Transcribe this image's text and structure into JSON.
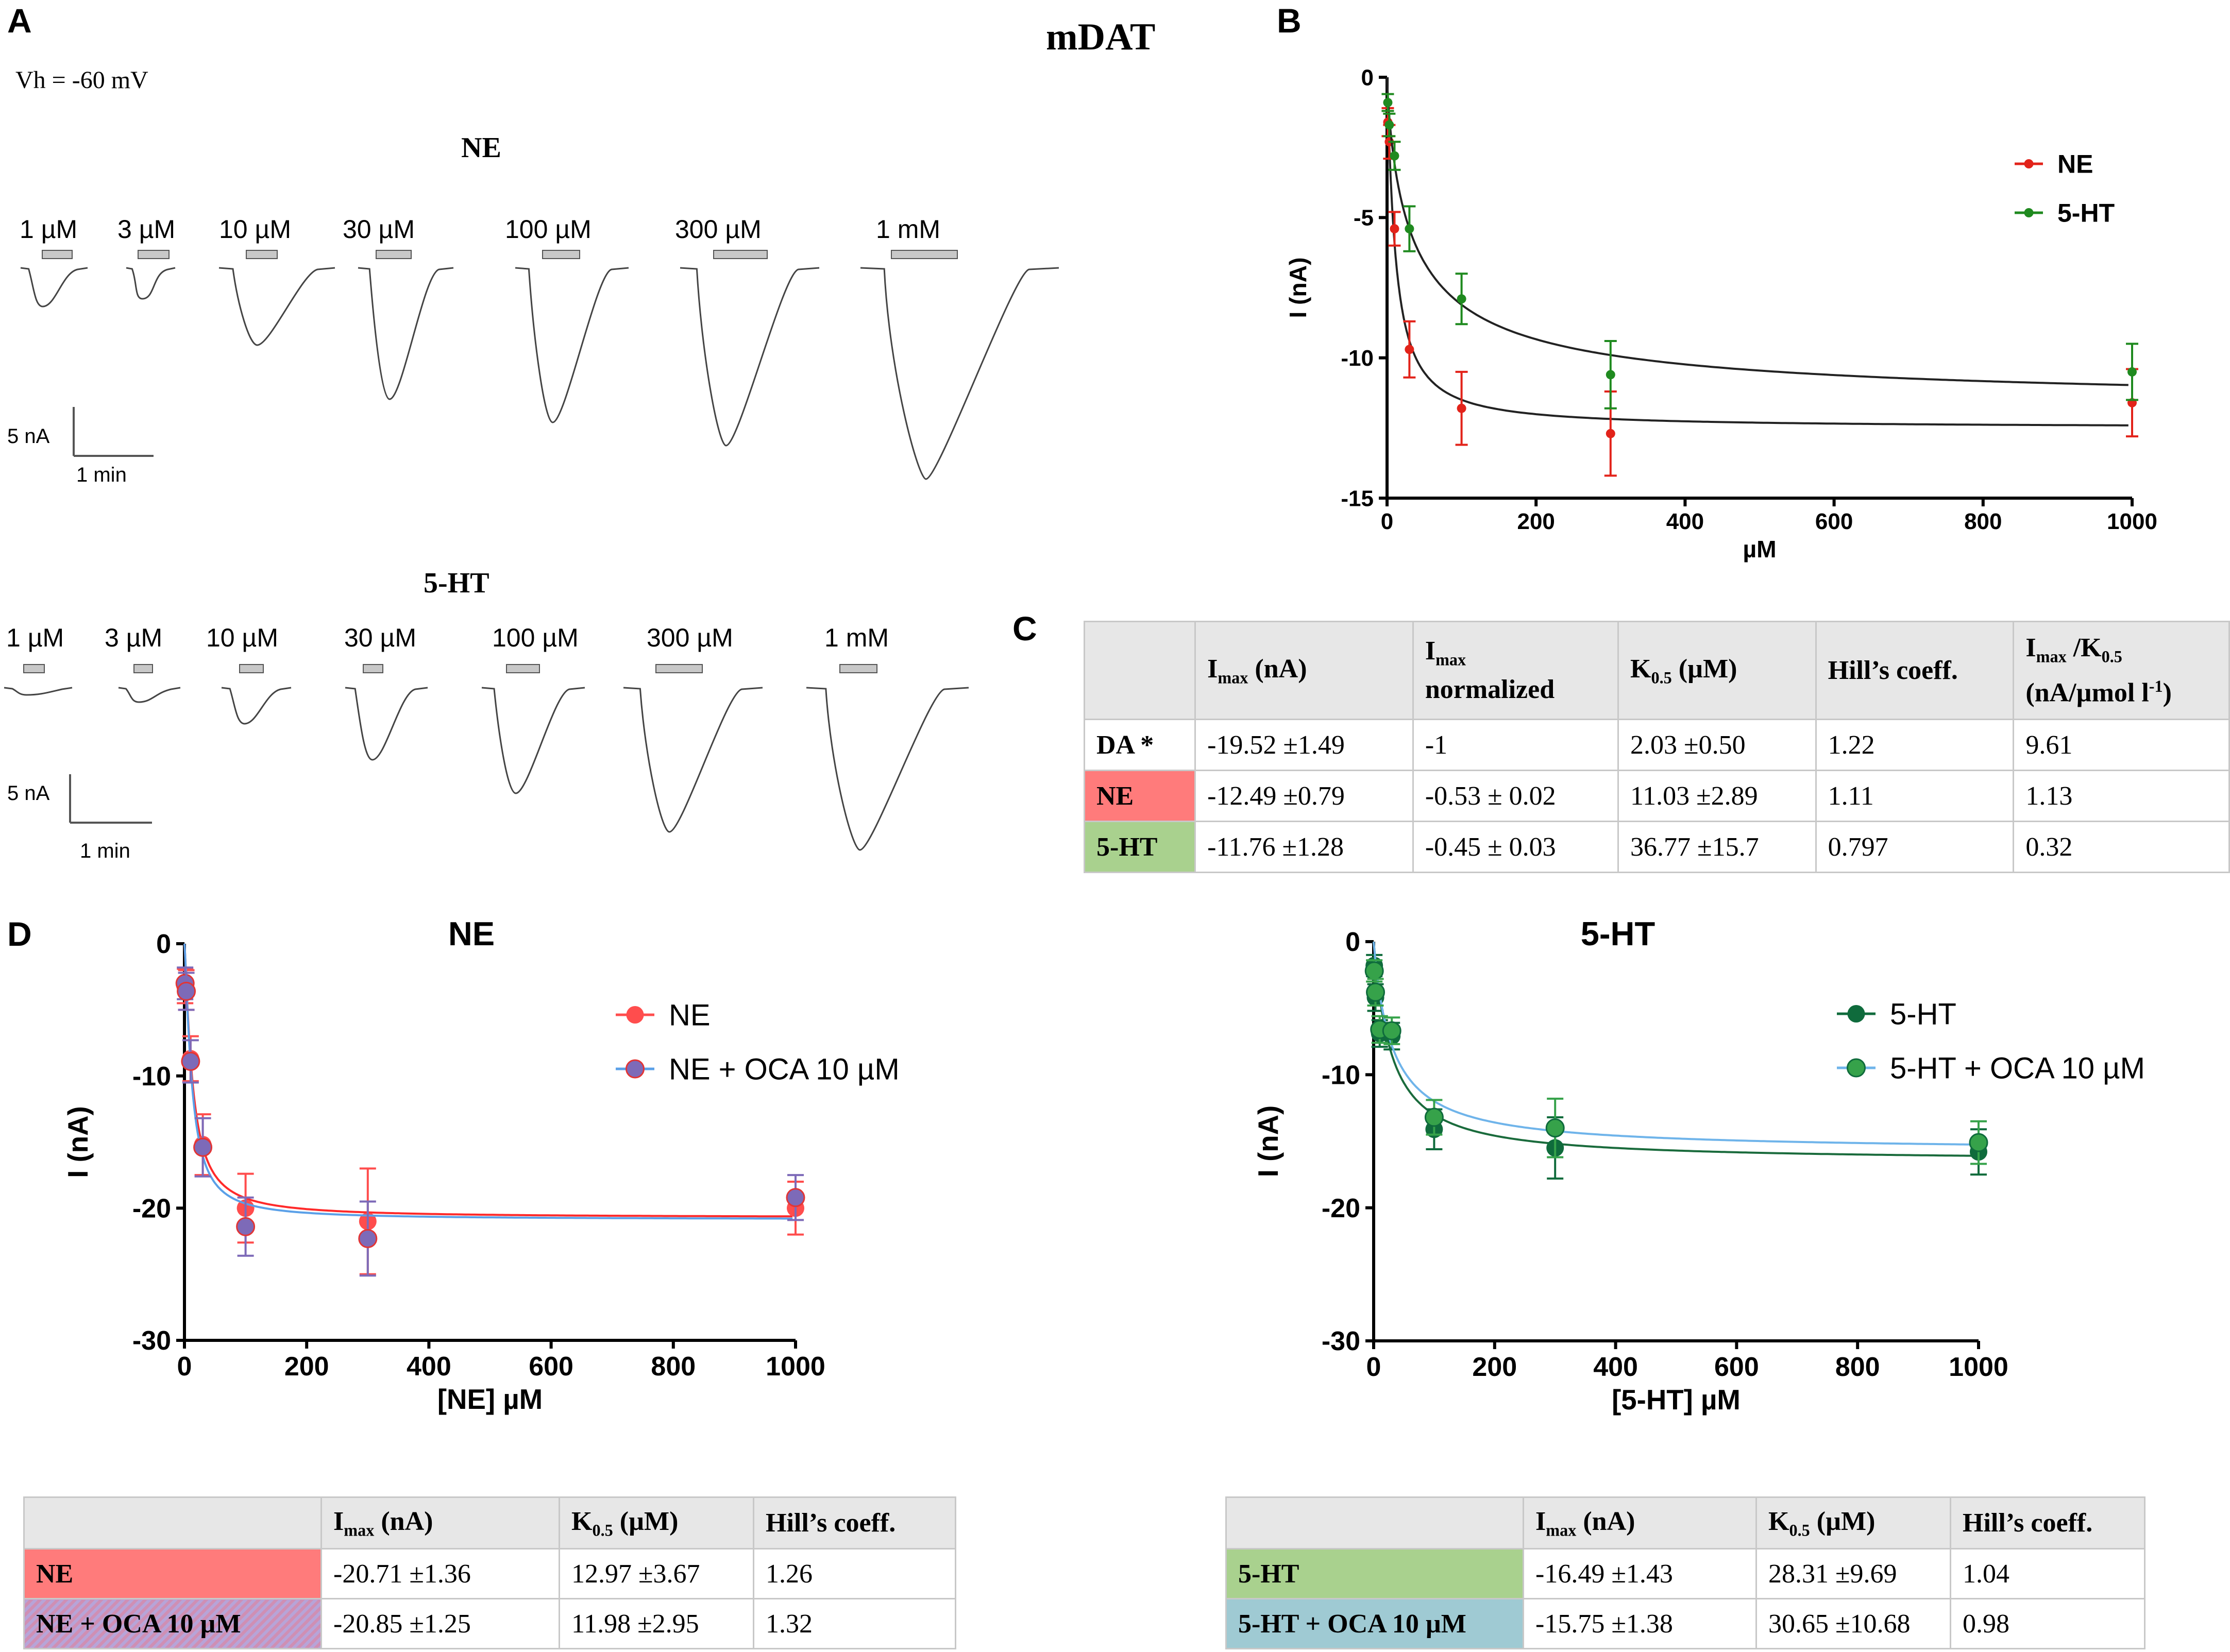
{
  "panel_letters": {
    "a": "A",
    "b": "B",
    "c": "C",
    "d": "D"
  },
  "panel_a": {
    "title": "mDAT",
    "vh": "Vh = -60 mV",
    "ne_title": "NE",
    "ht_title": "5-HT",
    "ne_concentrations": [
      "1 µM",
      "3 µM",
      "10 µM",
      "30 µM",
      "100 µM",
      "300 µM",
      "1 mM"
    ],
    "ht_concentrations": [
      "1 µM",
      "3 µM",
      "10 µM",
      "30 µM",
      "100 µM",
      "300 µM",
      "1 mM"
    ],
    "scale_current": "5 nA",
    "scale_time": "1 min"
  },
  "chart_data": [
    {
      "id": "B",
      "type": "scatter",
      "title": "",
      "xlabel": "µM",
      "ylabel": "I (nA)",
      "xlim": [
        0,
        1000
      ],
      "ylim": [
        -15,
        0
      ],
      "xticks": [
        "0",
        "200",
        "400",
        "600",
        "800",
        "1000"
      ],
      "yticks": [
        "0",
        "-5",
        "-10",
        "-15"
      ],
      "legend_position": "top-right",
      "series": [
        {
          "name": "NE",
          "color": "#e2231a",
          "x": [
            1,
            3,
            10,
            30,
            100,
            300,
            1000
          ],
          "y": [
            -1.6,
            -2.3,
            -5.4,
            -9.7,
            -11.8,
            -12.7,
            -11.6
          ],
          "err": [
            0.5,
            0.6,
            0.6,
            1.0,
            1.3,
            1.5,
            1.2
          ],
          "fit": {
            "imax": -12.49,
            "k": 11.03,
            "n": 1.11
          }
        },
        {
          "name": "5-HT",
          "color": "#1f8a1f",
          "x": [
            1,
            3,
            10,
            30,
            100,
            300,
            1000
          ],
          "y": [
            -0.9,
            -1.7,
            -2.8,
            -5.4,
            -7.9,
            -10.6,
            -10.5
          ],
          "err": [
            0.3,
            0.4,
            0.5,
            0.8,
            0.9,
            1.2,
            1.0
          ],
          "fit": {
            "imax": -11.76,
            "k": 36.77,
            "n": 0.797
          }
        }
      ]
    },
    {
      "id": "D-NE",
      "type": "scatter",
      "title": "NE",
      "xlabel": "[NE] µM",
      "ylabel": "I (nA)",
      "xlim": [
        0,
        1000
      ],
      "ylim": [
        -30,
        0
      ],
      "xticks": [
        "0",
        "200",
        "400",
        "600",
        "800",
        "1000"
      ],
      "yticks": [
        "0",
        "-10",
        "-20",
        "-30"
      ],
      "legend_position": "top-right",
      "series": [
        {
          "name": "NE",
          "color": "#ff4d4d",
          "x": [
            1,
            3,
            10,
            30,
            100,
            300,
            1000
          ],
          "y": [
            -3.2,
            -3.5,
            -8.7,
            -15.2,
            -20.0,
            -21.0,
            -20.0
          ],
          "err": [
            1.3,
            1.5,
            1.7,
            2.3,
            2.6,
            4.0,
            2.0
          ],
          "fit": {
            "imax": -20.71,
            "k": 12.97,
            "n": 1.26
          }
        },
        {
          "name": "NE + OCA 10 µM",
          "color": "#7d6ab8",
          "x": [
            1,
            3,
            10,
            30,
            100,
            300,
            1000
          ],
          "y": [
            -3.0,
            -3.6,
            -8.9,
            -15.4,
            -21.4,
            -22.3,
            -19.2
          ],
          "err": [
            1.2,
            1.4,
            1.6,
            2.2,
            2.2,
            2.8,
            1.7
          ],
          "fit": {
            "imax": -20.85,
            "k": 11.98,
            "n": 1.32
          }
        }
      ]
    },
    {
      "id": "D-5HT",
      "type": "scatter",
      "title": "5-HT",
      "xlabel": "[5-HT] µM",
      "ylabel": "I (nA)",
      "xlim": [
        0,
        1000
      ],
      "ylim": [
        -30,
        0
      ],
      "xticks": [
        "0",
        "200",
        "400",
        "600",
        "800",
        "1000"
      ],
      "yticks": [
        "0",
        "-10",
        "-20",
        "-30"
      ],
      "legend_position": "top-right",
      "series": [
        {
          "name": "5-HT",
          "color": "#0f6b3c",
          "x": [
            1,
            3,
            10,
            30,
            100,
            300,
            1000
          ],
          "y": [
            -1.8,
            -4.2,
            -6.9,
            -7.1,
            -14.1,
            -15.5,
            -15.8
          ],
          "err": [
            0.8,
            1.0,
            1.0,
            1.0,
            1.5,
            2.3,
            1.7
          ],
          "fit": {
            "imax": -16.49,
            "k": 28.31,
            "n": 1.04
          }
        },
        {
          "name": "5-HT + OCA 10 µM",
          "color": "#36a24a",
          "x": [
            1,
            3,
            10,
            30,
            100,
            300,
            1000
          ],
          "y": [
            -2.2,
            -3.8,
            -6.6,
            -6.7,
            -13.2,
            -14.0,
            -15.1
          ],
          "err": [
            0.8,
            1.0,
            1.0,
            1.0,
            1.3,
            2.2,
            1.6
          ],
          "fit": {
            "imax": -15.75,
            "k": 30.65,
            "n": 0.98
          }
        }
      ]
    }
  ],
  "table_c": {
    "headers": [
      "",
      "Imax (nA)",
      "Imax normalized",
      "K0.5 (µM)",
      "Hill’s coeff.",
      "Imax /K0.5 (nA/µmol l-1)"
    ],
    "rows": [
      {
        "label": "DA *",
        "imax": "-19.52 ±1.49",
        "norm": "-1",
        "k": "2.03 ±0.50",
        "hill": "1.22",
        "ratio": "9.61"
      },
      {
        "label": "NE",
        "imax": "-12.49 ±0.79",
        "norm": "-0.53 ± 0.02",
        "k": "11.03 ±2.89",
        "hill": "1.11",
        "ratio": "1.13"
      },
      {
        "label": "5-HT",
        "imax": "-11.76 ±1.28",
        "norm": "-0.45 ± 0.03",
        "k": "36.77 ±15.7",
        "hill": "0.797",
        "ratio": "0.32"
      }
    ]
  },
  "table_d_ne": {
    "headers": [
      "",
      "Imax (nA)",
      "K0.5 (µM)",
      "Hill’s coeff."
    ],
    "rows": [
      {
        "label": "NE",
        "imax": "-20.71 ±1.36",
        "k": "12.97 ±3.67",
        "hill": "1.26"
      },
      {
        "label": "NE + OCA 10 µM",
        "imax": "-20.85 ±1.25",
        "k": "11.98 ±2.95",
        "hill": "1.32"
      }
    ]
  },
  "table_d_5ht": {
    "headers": [
      "",
      "Imax (nA)",
      "K0.5 (µM)",
      "Hill’s coeff."
    ],
    "rows": [
      {
        "label": "5-HT",
        "imax": "-16.49 ±1.43",
        "k": "28.31 ±9.69",
        "hill": "1.04"
      },
      {
        "label": "5-HT + OCA 10 µM",
        "imax": "-15.75 ±1.38",
        "k": "30.65 ±10.68",
        "hill": "0.98"
      }
    ]
  }
}
